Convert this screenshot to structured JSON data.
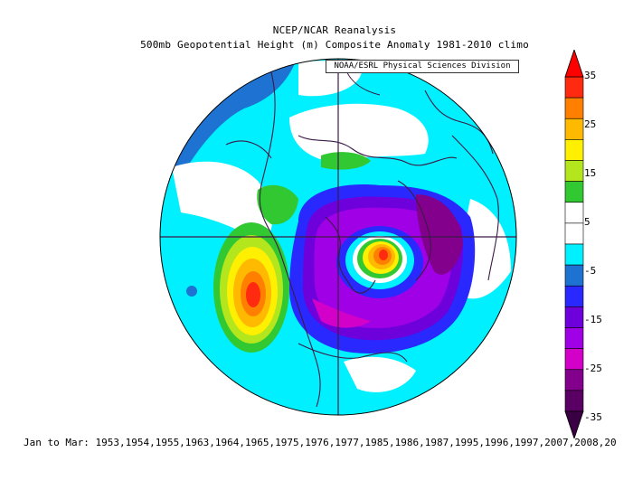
{
  "header": {
    "title": "NCEP/NCAR Reanalysis",
    "subtitle": "500mb Geopotential Height (m) Composite Anomaly 1981-2010 climo",
    "credit": "NOAA/ESRL Physical Sciences Division"
  },
  "colorbar": {
    "labels": [
      "35",
      "25",
      "15",
      "5",
      "-5",
      "-15",
      "-25",
      "-35"
    ],
    "colors": [
      "#ff2a0f",
      "#ff7f00",
      "#ffb900",
      "#ffef00",
      "#b4e61e",
      "#32c832",
      "#ffffff",
      "#ffffff",
      "#00f0ff",
      "#1e73d2",
      "#2828ff",
      "#6e00dc",
      "#a000e6",
      "#d200c8",
      "#82008c",
      "#5a0064"
    ]
  },
  "footer": {
    "text": "Jan to Mar: 1953,1954,1955,1963,1964,1965,1975,1976,1977,1985,1986,1987,1995,1996,1997,2007,2008,20"
  },
  "map": {
    "projection": "north-polar-stereographic",
    "field": "500mb geopotential height anomaly (m)"
  }
}
